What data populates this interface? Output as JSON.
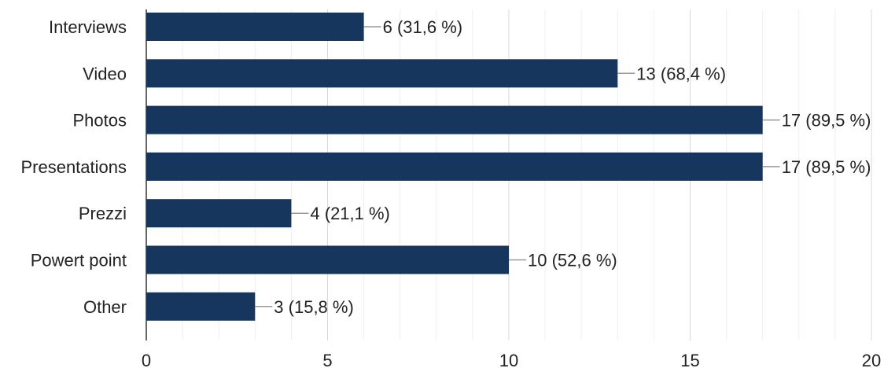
{
  "chart_data": {
    "type": "bar",
    "orientation": "horizontal",
    "categories": [
      "Interviews",
      "Video",
      "Photos",
      "Presentations",
      "Prezzi",
      "Powert point",
      "Other"
    ],
    "values": [
      6,
      13,
      17,
      17,
      4,
      10,
      3
    ],
    "data_labels": [
      "6 (31,6 %)",
      "13 (68,4 %)",
      "17 (89,5 %)",
      "17 (89,5 %)",
      "4 (21,1 %)",
      "10 (52,6 %)",
      "3 (15,8 %)"
    ],
    "x_ticks": [
      0,
      5,
      10,
      15,
      20
    ],
    "xlim": [
      0,
      20
    ],
    "grid": true,
    "bar_color": "#17365d",
    "title": "",
    "xlabel": "",
    "ylabel": ""
  }
}
